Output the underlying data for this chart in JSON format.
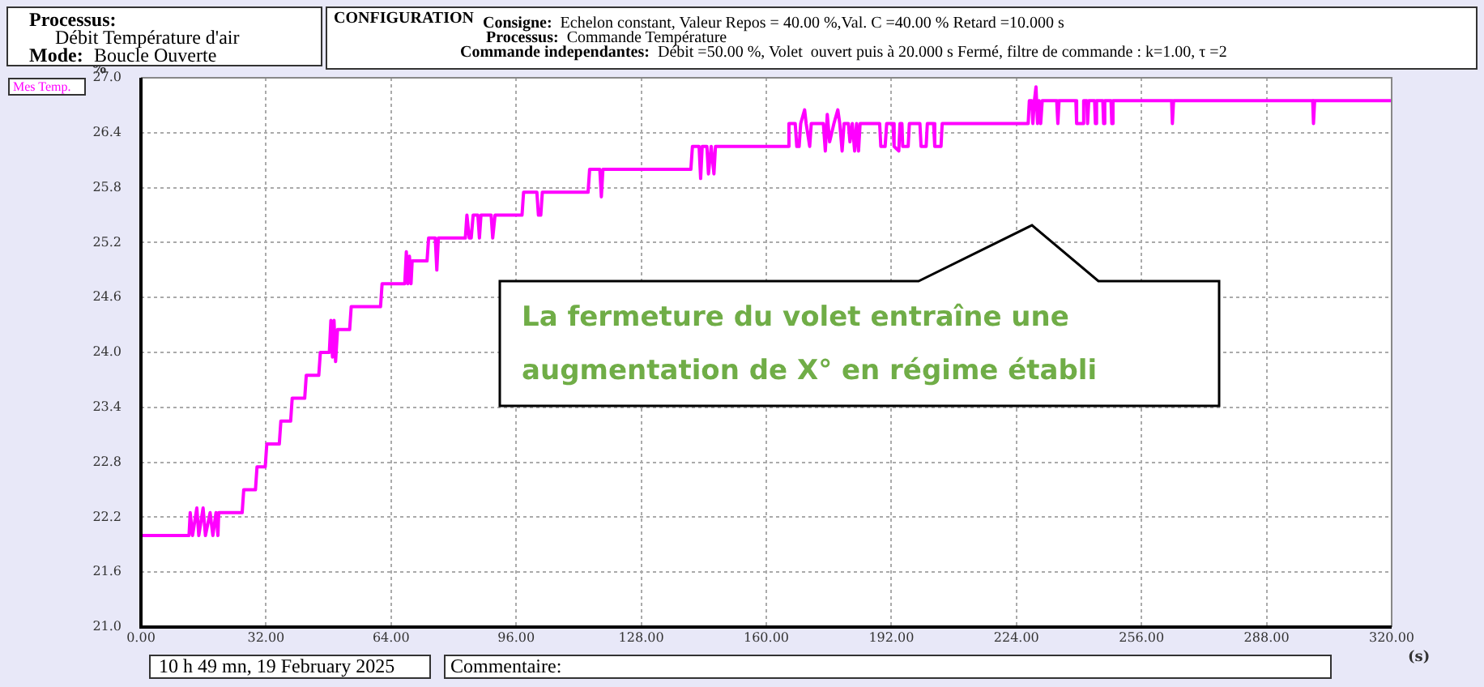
{
  "chart_data": {
    "type": "line",
    "ylabel": "%",
    "xlabel": "(s)",
    "xlim": [
      0,
      320
    ],
    "ylim": [
      21.0,
      27.0
    ],
    "xticks": [
      {
        "value": 0,
        "label": "0.00"
      },
      {
        "value": 32,
        "label": "32.00"
      },
      {
        "value": 64,
        "label": "64.00"
      },
      {
        "value": 96,
        "label": "96.00"
      },
      {
        "value": 128,
        "label": "128.00"
      },
      {
        "value": 160,
        "label": "160.00"
      },
      {
        "value": 192,
        "label": "192.00"
      },
      {
        "value": 224,
        "label": "224.00"
      },
      {
        "value": 256,
        "label": "256.00"
      },
      {
        "value": 288,
        "label": "288.00"
      },
      {
        "value": 320,
        "label": "320.00"
      }
    ],
    "yticks": [
      {
        "value": 21,
        "label": "21.0"
      },
      {
        "value": 21.6,
        "label": "21.6"
      },
      {
        "value": 22.2,
        "label": "22.2"
      },
      {
        "value": 22.8,
        "label": "22.8"
      },
      {
        "value": 23.4,
        "label": "23.4"
      },
      {
        "value": 24,
        "label": "24.0"
      },
      {
        "value": 24.6,
        "label": "24.6"
      },
      {
        "value": 25.2,
        "label": "25.2"
      },
      {
        "value": 25.8,
        "label": "25.8"
      },
      {
        "value": 26.4,
        "label": "26.4"
      },
      {
        "value": 27,
        "label": "27.0"
      }
    ],
    "grid": true,
    "legend": "top left",
    "marker": "none",
    "line_style": "solid",
    "annotations": [
      "Processus:",
      "Débit Température d'air",
      "Mode:",
      "Boucle Ouverte",
      "CONFIGURATION",
      "Consigne:  Echelon constant, Valeur Repos = 40.00 %,Val. C =40.00 % Retard =10.000 s",
      "Processus:  Commande Température",
      "Commande independantes:  Débit =50.00 %, Volet  ouvert puis à 20.000 s Fermé, filtre de commande : k=1.00, τ =2",
      "10 h 49 mn, 19 February 2025",
      "Commentaire:",
      "La fermeture du volet entraîne une augmentation de X° en régime établi"
    ],
    "series": [
      {
        "name": "Mes Temp.",
        "color": "#ff00ff",
        "x": [
          0,
          12.3,
          12.6,
          13.2,
          14.3,
          14.8,
          15.9,
          16.5,
          17.7,
          18.4,
          19.2,
          19.7,
          19.9,
          25.9,
          26.3,
          29.3,
          29.7,
          31.8,
          32.2,
          35.4,
          35.8,
          38.3,
          38.7,
          41.9,
          42.3,
          45.5,
          45.9,
          48.2,
          48.6,
          49.0,
          49.4,
          49.8,
          50.3,
          53.4,
          53.8,
          61.3,
          61.7,
          67.5,
          67.9,
          68.3,
          68.7,
          69.1,
          69.4,
          73.2,
          73.6,
          75.3,
          75.7,
          76.1,
          83.0,
          83.4,
          84.0,
          84.5,
          85.0,
          86.2,
          86.6,
          87.0,
          89.6,
          90.0,
          90.6,
          97.5,
          97.9,
          101.3,
          101.7,
          102.3,
          102.7,
          114.4,
          114.8,
          117.4,
          117.8,
          118.2,
          140.7,
          141.1,
          142.8,
          143.2,
          143.6,
          144.8,
          145.2,
          145.9,
          146.6,
          147.0,
          165.4,
          165.8,
          167.4,
          167.8,
          168.4,
          168.8,
          169.8,
          170.2,
          171.1,
          171.5,
          174.6,
          175.1,
          175.6,
          176.2,
          177.3,
          178.3,
          178.8,
          179.4,
          179.9,
          181.0,
          181.4,
          182.0,
          182.6,
          183.1,
          183.6,
          184.0,
          189.0,
          189.3,
          190.4,
          190.8,
          192.4,
          192.7,
          193.9,
          194.2,
          194.7,
          194.9,
          196.3,
          196.6,
          199.3,
          199.6,
          200.9,
          201.2,
          202.8,
          203.1,
          204.7,
          205.0,
          227.0,
          227.3,
          227.9,
          228.2,
          228.6,
          229.0,
          229.4,
          229.8,
          230.2,
          230.6,
          234.3,
          234.6,
          234.9,
          239.2,
          239.4,
          240.9,
          241.2,
          242.0,
          242.2,
          242.5,
          244.0,
          244.2,
          244.5,
          246.1,
          246.3,
          246.6,
          248.2,
          248.4,
          248.7,
          263.7,
          263.9,
          264.2,
          299.8,
          300.0,
          300.3,
          320
        ],
        "values": [
          22.0,
          22.0,
          22.25,
          22.0,
          22.3,
          22.0,
          22.3,
          22.0,
          22.25,
          22.0,
          22.25,
          22.0,
          22.25,
          22.25,
          22.5,
          22.5,
          22.75,
          22.75,
          23.0,
          23.0,
          23.25,
          23.25,
          23.5,
          23.5,
          23.75,
          23.75,
          24.0,
          24.0,
          24.35,
          23.95,
          24.35,
          23.9,
          24.25,
          24.25,
          24.5,
          24.5,
          24.75,
          24.75,
          25.1,
          24.75,
          25.05,
          24.75,
          25.0,
          25.0,
          25.25,
          25.25,
          24.9,
          25.25,
          25.25,
          25.5,
          25.25,
          25.25,
          25.5,
          25.5,
          25.25,
          25.5,
          25.5,
          25.25,
          25.5,
          25.5,
          25.75,
          25.75,
          25.5,
          25.5,
          25.75,
          25.75,
          26.0,
          26.0,
          25.7,
          26.0,
          26.0,
          26.25,
          26.25,
          25.9,
          26.25,
          26.25,
          25.95,
          26.25,
          25.95,
          26.25,
          26.25,
          26.5,
          26.5,
          26.25,
          26.25,
          26.5,
          26.65,
          26.5,
          26.25,
          26.5,
          26.5,
          26.2,
          26.6,
          26.3,
          26.5,
          26.65,
          26.5,
          26.2,
          26.5,
          26.5,
          26.3,
          26.5,
          26.2,
          26.5,
          26.2,
          26.5,
          26.5,
          26.25,
          26.25,
          26.5,
          26.5,
          26.25,
          26.2,
          26.5,
          26.5,
          26.25,
          26.25,
          26.5,
          26.5,
          26.25,
          26.25,
          26.5,
          26.5,
          26.25,
          26.25,
          26.5,
          26.5,
          26.75,
          26.75,
          26.5,
          26.75,
          26.9,
          26.5,
          26.75,
          26.5,
          26.75,
          26.75,
          26.5,
          26.75,
          26.75,
          26.5,
          26.5,
          26.75,
          26.75,
          26.5,
          26.75,
          26.75,
          26.5,
          26.75,
          26.75,
          26.5,
          26.75,
          26.75,
          26.5,
          26.75,
          26.75,
          26.5,
          26.75,
          26.75,
          26.5,
          26.75,
          26.75
        ]
      }
    ]
  }
}
